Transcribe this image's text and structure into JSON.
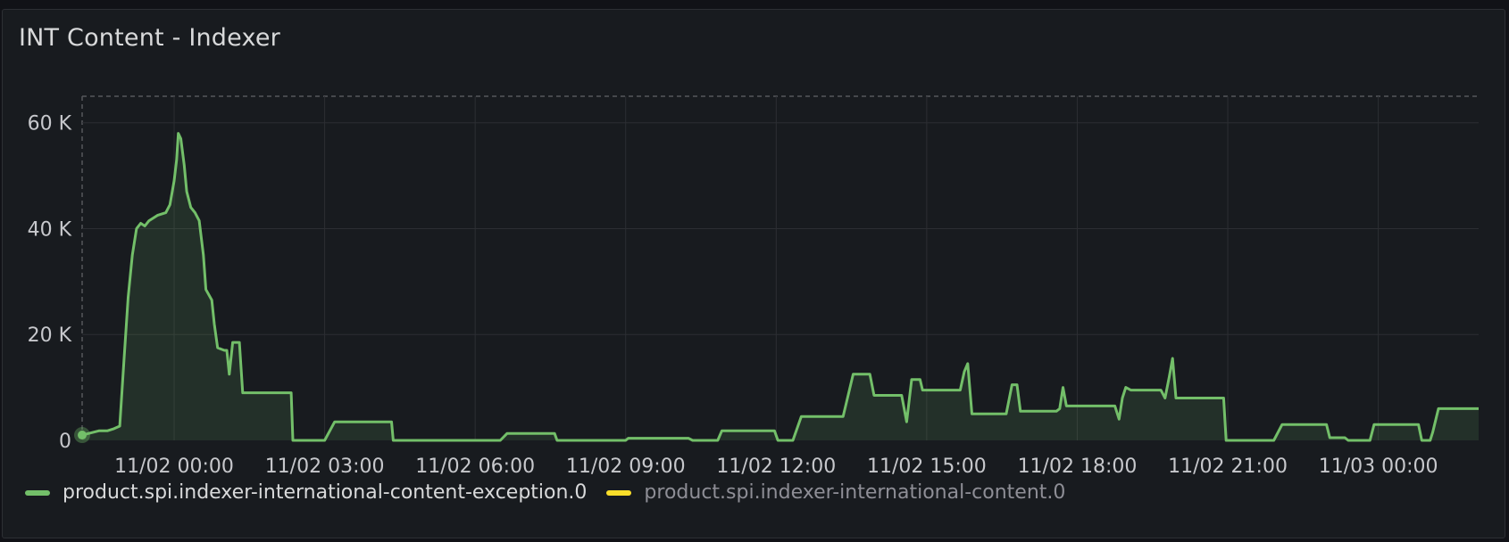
{
  "panel": {
    "title": "INT Content - Indexer"
  },
  "colors": {
    "background": "#181b1f",
    "grid": "#2c2e33",
    "series_primary": "#73bf69",
    "series_secondary": "#fade2a"
  },
  "chart_data": {
    "type": "area",
    "title": "INT Content - Indexer",
    "x_tick_labels": [
      "11/02 00:00",
      "11/02 03:00",
      "11/02 06:00",
      "11/02 09:00",
      "11/02 12:00",
      "11/02 15:00",
      "11/02 18:00",
      "11/02 21:00",
      "11/03 00:00"
    ],
    "y_tick_labels": [
      "0",
      "20 K",
      "40 K",
      "60 K"
    ],
    "y_ticks": [
      0,
      20000,
      40000,
      60000
    ],
    "xlim": [
      "11/01 22:10",
      "11/03 02:00"
    ],
    "ylim": [
      0,
      65000
    ],
    "grid": true,
    "legend_position": "bottom-left",
    "series": [
      {
        "name": "product.spi.indexer-international-content-exception.0",
        "visible": true,
        "points": [
          [
            "11/01 22:10",
            1000
          ],
          [
            "11/01 22:30",
            1800
          ],
          [
            "11/01 22:40",
            1800
          ],
          [
            "11/01 22:48",
            2200
          ],
          [
            "11/01 22:55",
            2700
          ],
          [
            "11/01 23:00",
            15000
          ],
          [
            "11/01 23:05",
            27000
          ],
          [
            "11/01 23:10",
            35000
          ],
          [
            "11/01 23:15",
            40000
          ],
          [
            "11/01 23:20",
            41000
          ],
          [
            "11/01 23:25",
            40500
          ],
          [
            "11/01 23:30",
            41500
          ],
          [
            "11/01 23:40",
            42500
          ],
          [
            "11/01 23:50",
            43000
          ],
          [
            "11/01 23:55",
            44500
          ],
          [
            "11/02 00:00",
            49000
          ],
          [
            "11/02 00:03",
            53000
          ],
          [
            "11/02 00:05",
            58000
          ],
          [
            "11/02 00:08",
            57000
          ],
          [
            "11/02 00:12",
            52000
          ],
          [
            "11/02 00:15",
            47000
          ],
          [
            "11/02 00:20",
            44000
          ],
          [
            "11/02 00:25",
            43000
          ],
          [
            "11/02 00:30",
            41500
          ],
          [
            "11/02 00:35",
            35000
          ],
          [
            "11/02 00:38",
            28500
          ],
          [
            "11/02 00:45",
            26500
          ],
          [
            "11/02 00:48",
            22000
          ],
          [
            "11/02 00:52",
            17500
          ],
          [
            "11/02 01:00",
            17000
          ],
          [
            "11/02 01:03",
            17000
          ],
          [
            "11/02 01:06",
            12500
          ],
          [
            "11/02 01:10",
            18500
          ],
          [
            "11/02 01:18",
            18500
          ],
          [
            "11/02 01:22",
            9000
          ],
          [
            "11/02 02:20",
            9000
          ],
          [
            "11/02 02:22",
            0
          ],
          [
            "11/02 03:00",
            0
          ],
          [
            "11/02 03:12",
            3500
          ],
          [
            "11/02 04:20",
            3500
          ],
          [
            "11/02 04:22",
            0
          ],
          [
            "11/02 06:30",
            0
          ],
          [
            "11/02 06:38",
            1300
          ],
          [
            "11/02 07:35",
            1300
          ],
          [
            "11/02 07:38",
            0
          ],
          [
            "11/02 09:00",
            0
          ],
          [
            "11/02 09:03",
            400
          ],
          [
            "11/02 10:15",
            400
          ],
          [
            "11/02 10:20",
            0
          ],
          [
            "11/02 10:50",
            0
          ],
          [
            "11/02 10:55",
            1800
          ],
          [
            "11/02 11:58",
            1800
          ],
          [
            "11/02 12:02",
            0
          ],
          [
            "11/02 12:20",
            0
          ],
          [
            "11/02 12:30",
            4500
          ],
          [
            "11/02 13:20",
            4500
          ],
          [
            "11/02 13:32",
            12500
          ],
          [
            "11/02 13:52",
            12500
          ],
          [
            "11/02 13:57",
            8500
          ],
          [
            "11/02 14:30",
            8500
          ],
          [
            "11/02 14:36",
            3500
          ],
          [
            "11/02 14:42",
            11500
          ],
          [
            "11/02 14:52",
            11500
          ],
          [
            "11/02 14:55",
            9500
          ],
          [
            "11/02 15:40",
            9500
          ],
          [
            "11/02 15:45",
            13000
          ],
          [
            "11/02 15:49",
            14500
          ],
          [
            "11/02 15:54",
            5000
          ],
          [
            "11/02 16:35",
            5000
          ],
          [
            "11/02 16:42",
            10500
          ],
          [
            "11/02 16:48",
            10500
          ],
          [
            "11/02 16:52",
            5500
          ],
          [
            "11/02 17:35",
            5500
          ],
          [
            "11/02 17:39",
            6000
          ],
          [
            "11/02 17:43",
            10000
          ],
          [
            "11/02 17:47",
            6500
          ],
          [
            "11/02 18:45",
            6500
          ],
          [
            "11/02 18:50",
            4000
          ],
          [
            "11/02 18:54",
            8000
          ],
          [
            "11/02 18:58",
            10000
          ],
          [
            "11/02 19:04",
            9500
          ],
          [
            "11/02 19:40",
            9500
          ],
          [
            "11/02 19:45",
            8000
          ],
          [
            "11/02 19:50",
            12000
          ],
          [
            "11/02 19:54",
            15500
          ],
          [
            "11/02 19:58",
            8000
          ],
          [
            "11/02 20:55",
            8000
          ],
          [
            "11/02 20:58",
            0
          ],
          [
            "11/02 21:55",
            0
          ],
          [
            "11/02 22:05",
            3000
          ],
          [
            "11/02 22:58",
            3000
          ],
          [
            "11/02 23:02",
            500
          ],
          [
            "11/02 23:20",
            500
          ],
          [
            "11/02 23:24",
            0
          ],
          [
            "11/02 23:50",
            0
          ],
          [
            "11/02 23:55",
            3000
          ],
          [
            "11/03 00:48",
            3000
          ],
          [
            "11/03 00:52",
            0
          ],
          [
            "11/03 01:02",
            0
          ],
          [
            "11/03 01:05",
            1500
          ],
          [
            "11/03 01:12",
            6000
          ],
          [
            "11/03 02:00",
            6000
          ]
        ]
      },
      {
        "name": "product.spi.indexer-international-content.0",
        "visible": false,
        "points": []
      }
    ]
  }
}
